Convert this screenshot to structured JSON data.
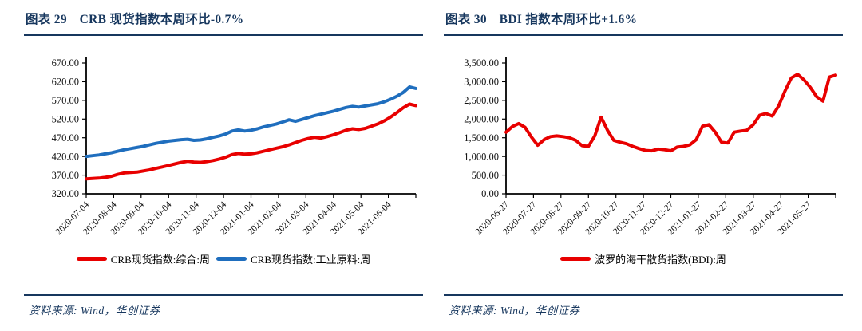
{
  "colors": {
    "navy": "#17375e",
    "red": "#e80000",
    "blue": "#1f6ebe",
    "axis": "#000000"
  },
  "panels": [
    {
      "source": "资料来源: Wind，华创证券"
    },
    {
      "source": "资料来源: Wind，华创证券"
    }
  ],
  "chart_data": [
    {
      "type": "line",
      "name": "crb-spot-index",
      "title": "图表 29　CRB 现货指数本周环比-0.7%",
      "ylim": [
        320,
        670
      ],
      "y_tick_step": 50,
      "y_tick_labels": [
        "320.00",
        "370.00",
        "420.00",
        "470.00",
        "520.00",
        "570.00",
        "620.00",
        "670.00"
      ],
      "x_tick_labels": [
        "2020-07-04",
        "2020-08-04",
        "2020-09-04",
        "2020-10-04",
        "2020-11-04",
        "2020-12-04",
        "2021-01-04",
        "2021-02-04",
        "2021-03-04",
        "2021-04-04",
        "2021-05-04",
        "2021-06-04"
      ],
      "grid": false,
      "legend_position": "bottom",
      "series": [
        {
          "name": "CRB现货指数:综合:周",
          "color": "#e80000",
          "values": [
            360,
            361,
            362,
            364,
            367,
            372,
            376,
            377,
            378,
            381,
            384,
            388,
            392,
            396,
            400,
            404,
            407,
            405,
            404,
            406,
            409,
            413,
            418,
            425,
            428,
            426,
            427,
            430,
            434,
            438,
            442,
            446,
            451,
            457,
            463,
            468,
            471,
            469,
            473,
            478,
            484,
            490,
            494,
            492,
            495,
            501,
            507,
            515,
            525,
            537,
            550,
            560,
            556
          ]
        },
        {
          "name": "CRB现货指数:工业原料:周",
          "color": "#1f6ebe",
          "values": [
            420,
            422,
            424,
            427,
            430,
            434,
            438,
            441,
            444,
            447,
            451,
            455,
            458,
            461,
            463,
            465,
            466,
            463,
            464,
            467,
            471,
            475,
            480,
            488,
            491,
            488,
            490,
            494,
            499,
            503,
            507,
            512,
            518,
            514,
            519,
            524,
            529,
            533,
            537,
            541,
            546,
            551,
            554,
            552,
            555,
            558,
            561,
            566,
            573,
            581,
            591,
            606,
            602
          ]
        }
      ]
    },
    {
      "type": "line",
      "name": "bdi-index",
      "title": "图表 30　BDI 指数本周环比+1.6%",
      "ylim": [
        0,
        3500
      ],
      "y_tick_step": 500,
      "y_tick_labels": [
        "0.00",
        "500.00",
        "1,000.00",
        "1,500.00",
        "2,000.00",
        "2,500.00",
        "3,000.00",
        "3,500.00"
      ],
      "x_tick_labels": [
        "2020-06-27",
        "2020-07-27",
        "2020-08-27",
        "2020-09-27",
        "2020-10-27",
        "2020-11-27",
        "2020-12-27",
        "2021-01-27",
        "2021-02-27",
        "2021-03-27",
        "2021-04-27",
        "2021-05-27"
      ],
      "grid": false,
      "legend_position": "bottom",
      "series": [
        {
          "name": "波罗的海干散货指数(BDI):周",
          "color": "#e80000",
          "values": [
            1650,
            1800,
            1880,
            1780,
            1520,
            1300,
            1450,
            1530,
            1550,
            1530,
            1500,
            1430,
            1290,
            1270,
            1550,
            2050,
            1700,
            1430,
            1380,
            1340,
            1270,
            1210,
            1160,
            1150,
            1200,
            1180,
            1150,
            1250,
            1270,
            1310,
            1450,
            1810,
            1850,
            1650,
            1380,
            1360,
            1650,
            1680,
            1700,
            1850,
            2100,
            2150,
            2080,
            2350,
            2750,
            3100,
            3200,
            3050,
            2850,
            2600,
            2480,
            3125,
            3175
          ]
        }
      ]
    }
  ]
}
